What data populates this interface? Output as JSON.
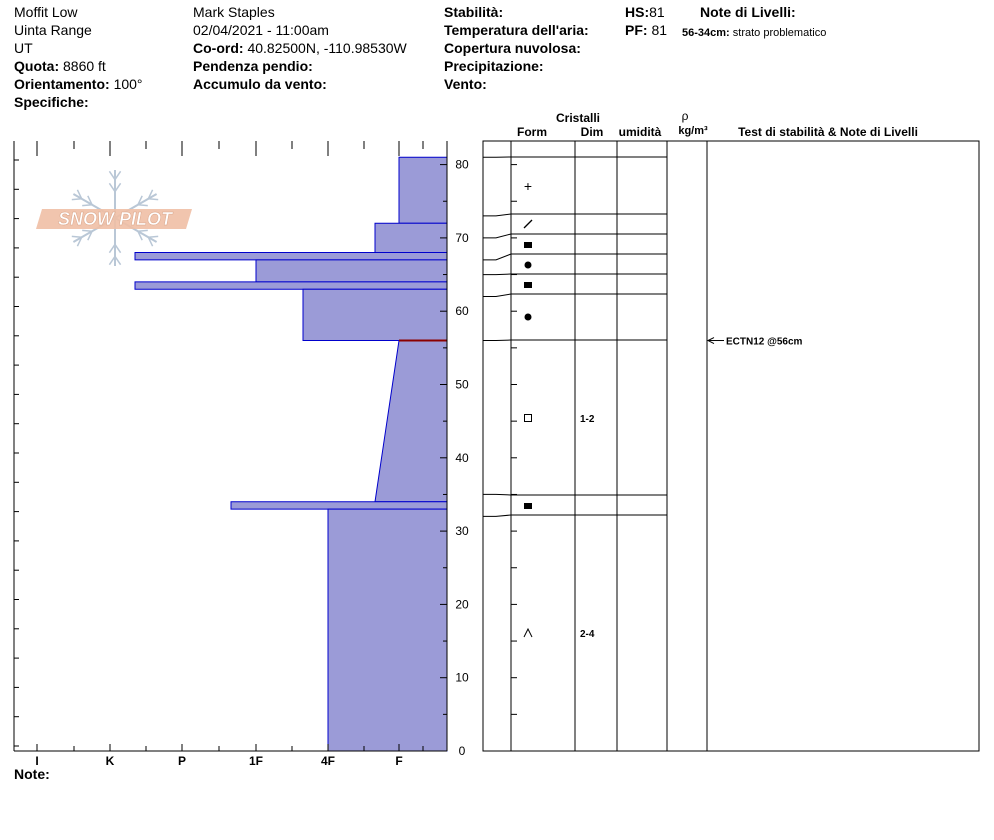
{
  "header": {
    "location": "Moffit Low",
    "range": "Uinta Range",
    "state": "UT",
    "elevation_label": "Quota:",
    "elevation_value": "8860 ft",
    "aspect_label": "Orientamento:",
    "aspect_value": "100°",
    "specifics_label": "Specifiche:",
    "observer": "Mark Staples",
    "datetime": "02/04/2021 - 11:00am",
    "coords_label": "Co-ord:",
    "coords_value": "40.82500N, -110.98530W",
    "slope_label": "Pendenza pendio:",
    "wind_loading_label": "Accumulo da vento:",
    "stability_label": "Stabilità:",
    "air_temp_label": "Temperatura dell'aria:",
    "cloud_label": "Copertura nuvolosa:",
    "precip_label": "Precipitazione:",
    "wind_label": "Vento:",
    "hs_label": "HS:",
    "hs_value": "81",
    "pf_label": "PF:",
    "pf_value": "81",
    "layer_notes_label": "Note di Livelli:",
    "layer_note_range": "56-34cm:",
    "layer_note_text": "strato problematico"
  },
  "logo_text": "SNOW PILOT",
  "columns": {
    "crystals": "Cristalli",
    "form": "Form",
    "dim": "Dim",
    "moisture": "umidità",
    "rho": "ρ",
    "density_unit": "kg/m³",
    "tests": "Test di stabilità & Note di Livelli"
  },
  "notes_label": "Note:",
  "chart_data": {
    "type": "area",
    "title": "",
    "xlabel": "",
    "ylabel": "",
    "x_categories": [
      "I",
      "K",
      "P",
      "1F",
      "4F",
      "F"
    ],
    "x_direction": "hardness increases from right (F) to left (I)",
    "yticks": [
      0,
      10,
      20,
      30,
      40,
      50,
      60,
      70,
      80
    ],
    "ylim": [
      0,
      83
    ],
    "snow_height_cm": 81,
    "hardness_profile_cm": [
      {
        "from": 0,
        "to": 33,
        "hardness": "4F"
      },
      {
        "from": 33,
        "to": 34,
        "hardness": "1F-"
      },
      {
        "from": 34,
        "to": 56,
        "hardness": "F+ to F (gradual)"
      },
      {
        "from": 56,
        "to": 63,
        "hardness": "1F+"
      },
      {
        "from": 63,
        "to": 64,
        "hardness": "P+"
      },
      {
        "from": 64,
        "to": 67,
        "hardness": "1F"
      },
      {
        "from": 67,
        "to": 68,
        "hardness": "P+"
      },
      {
        "from": 68,
        "to": 72,
        "hardness": "F+"
      },
      {
        "from": 72,
        "to": 81,
        "hardness": "F"
      }
    ],
    "weak_layer_cm": 56,
    "layer_boundaries_cm": [
      0,
      32,
      35,
      56,
      62,
      65,
      67,
      70,
      73,
      81
    ],
    "grain_forms": [
      {
        "symbol": "+",
        "name": "precipitation particles",
        "top": 81,
        "bottom": 73
      },
      {
        "symbol": "/",
        "name": "decomposing fragments",
        "top": 73,
        "bottom": 70
      },
      {
        "symbol": "■",
        "name": "melt-freeze crust",
        "top": 70,
        "bottom": 67
      },
      {
        "symbol": "●",
        "name": "rounded grains",
        "top": 67,
        "bottom": 65
      },
      {
        "symbol": "■",
        "name": "melt-freeze crust",
        "top": 65,
        "bottom": 62
      },
      {
        "symbol": "●",
        "name": "rounded grains",
        "top": 62,
        "bottom": 56
      },
      {
        "symbol": "□",
        "name": "faceted crystals",
        "size": "1-2",
        "top": 56,
        "bottom": 35
      },
      {
        "symbol": "■",
        "name": "melt-freeze crust",
        "top": 35,
        "bottom": 32
      },
      {
        "symbol": "^",
        "name": "depth hoar",
        "size": "2-4",
        "top": 32,
        "bottom": 0
      }
    ],
    "stability_tests": [
      {
        "label": "ECTN12 @56cm",
        "depth_cm": 56
      }
    ],
    "colors": {
      "fill": "#9b9bd7",
      "edge": "#0000cc",
      "weak_layer": "#8b0000"
    }
  }
}
